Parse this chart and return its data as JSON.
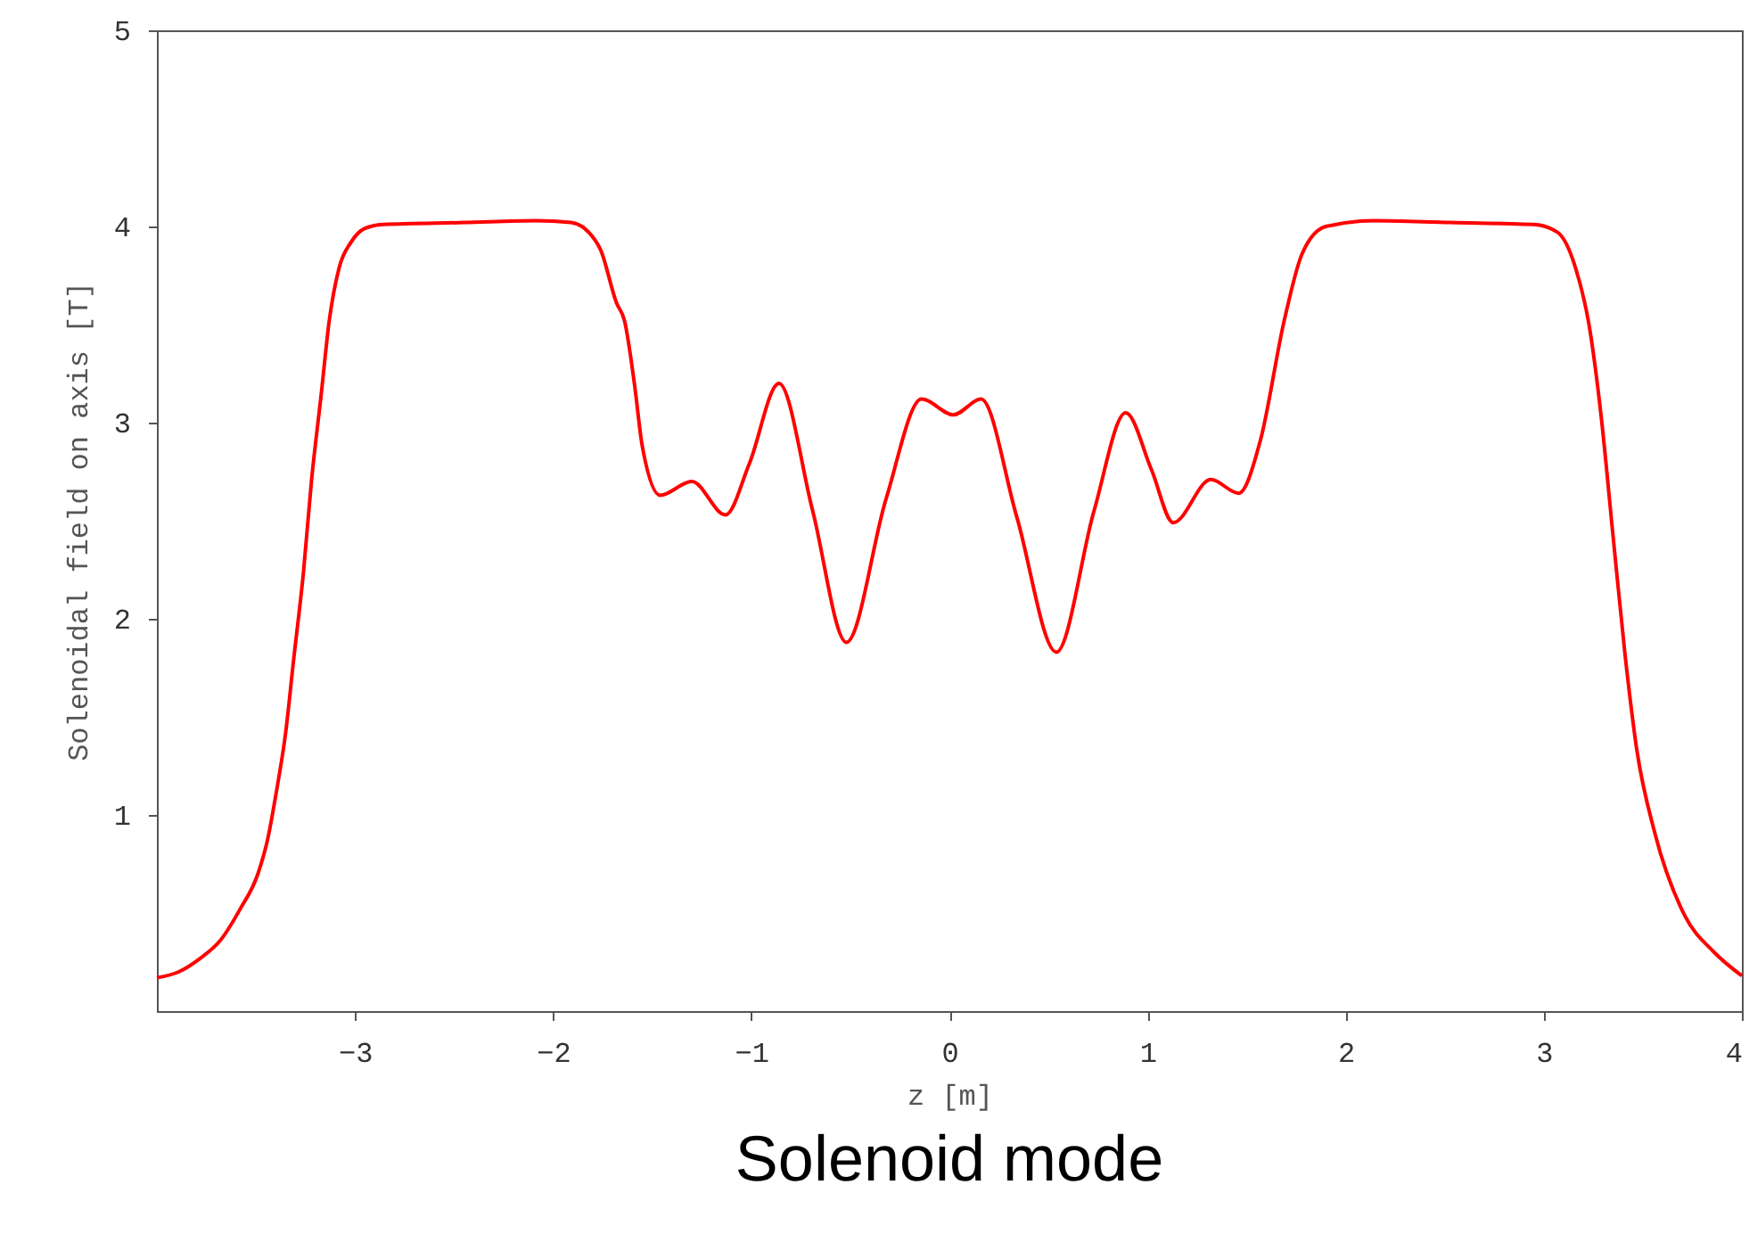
{
  "chart_data": {
    "type": "line",
    "title": "Solenoid mode",
    "xlabel": "z [m]",
    "ylabel": "Solenoidal field on axis [T]",
    "xlim": [
      -4,
      4
    ],
    "xticks": [
      -3,
      -2,
      -1,
      0,
      1,
      2,
      3,
      4
    ],
    "ylim": [
      0,
      5
    ],
    "yticks": [
      1,
      2,
      3,
      4,
      5
    ],
    "grid": false,
    "series": [
      {
        "color": "#ff0000",
        "x": [
          -4,
          -3.89,
          -3.78,
          -3.68,
          -3.58,
          -3.49,
          -3.44,
          -3.4,
          -3.35,
          -3.31,
          -3.26,
          -3.22,
          -3.17,
          -3.13,
          -3.08,
          -3.02,
          -2.95,
          -2.86,
          -2.45,
          -2.09,
          -1.91,
          -1.82,
          -1.76,
          -1.68,
          -1.64,
          -1.59,
          -1.55,
          -1.46,
          -1.3,
          -1.13,
          -1.01,
          -0.86,
          -0.69,
          -0.52,
          -0.32,
          -0.14,
          0.02,
          0.16,
          0.34,
          0.54,
          0.73,
          0.89,
          1.02,
          1.13,
          1.32,
          1.46,
          1.57,
          1.69,
          1.78,
          1.9,
          2.14,
          2.53,
          2.95,
          3.07,
          3.16,
          3.23,
          3.29,
          3.35,
          3.41,
          3.47,
          3.56,
          3.71,
          3.86,
          4
        ],
        "values": [
          0.17,
          0.2,
          0.27,
          0.36,
          0.52,
          0.7,
          0.88,
          1.1,
          1.42,
          1.79,
          2.24,
          2.7,
          3.15,
          3.52,
          3.79,
          3.92,
          3.99,
          4.01,
          4.02,
          4.03,
          4.02,
          3.97,
          3.88,
          3.61,
          3.52,
          3.2,
          2.88,
          2.63,
          2.7,
          2.53,
          2.79,
          3.2,
          2.55,
          1.88,
          2.61,
          3.12,
          3.04,
          3.12,
          2.52,
          1.83,
          2.55,
          3.05,
          2.76,
          2.49,
          2.71,
          2.64,
          2.91,
          3.52,
          3.86,
          4.0,
          4.03,
          4.02,
          4.01,
          3.97,
          3.79,
          3.49,
          3.03,
          2.42,
          1.82,
          1.33,
          0.91,
          0.49,
          0.3,
          0.18
        ]
      }
    ]
  }
}
